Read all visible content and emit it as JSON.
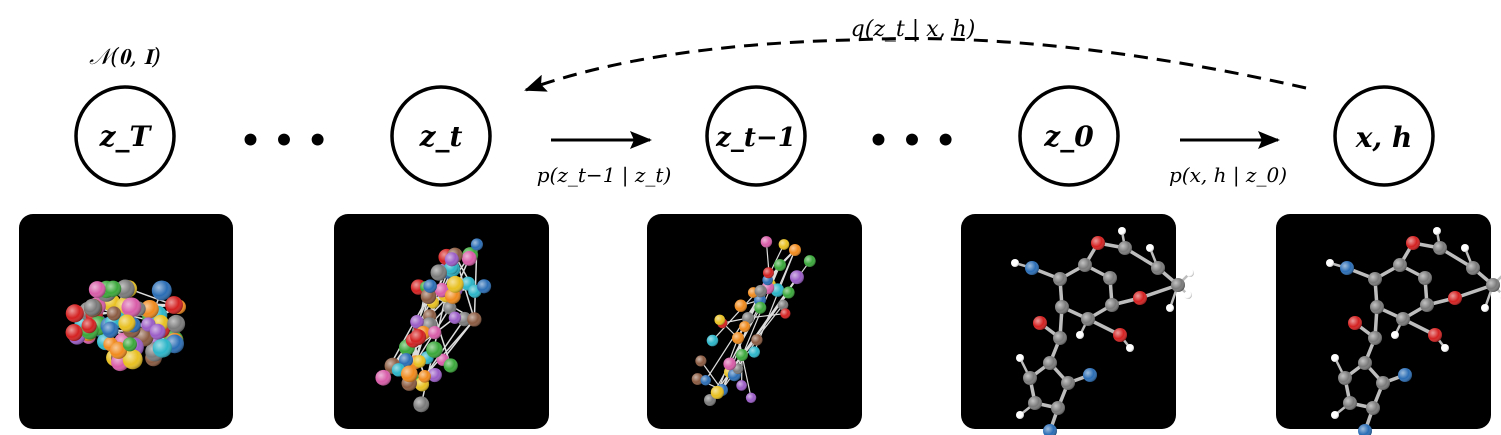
{
  "prior": {
    "label": "𝒩(𝟎, 𝐈)"
  },
  "nodes": [
    {
      "label": "z_T"
    },
    {
      "label": "z_t"
    },
    {
      "label": "z_t−1"
    },
    {
      "label": "z_0"
    },
    {
      "label": "x, h"
    }
  ],
  "ellipsis": [
    "• • •",
    "• • •"
  ],
  "edges": {
    "reverse_step": "p(z_t−1 | z_t)",
    "decode": "p(x, h | z_0)",
    "forward": "q(z_t | x, h)"
  },
  "panels": [
    {
      "stage": "noise"
    },
    {
      "stage": "partially-noised"
    },
    {
      "stage": "denoising"
    },
    {
      "stage": "nearly-clean"
    },
    {
      "stage": "molecule"
    }
  ],
  "atom_colors": {
    "carbon": "#7a7a7a",
    "oxygen": "#d42020",
    "nitrogen": "#2a6db5",
    "hydrogen": "#ffffff",
    "noise": [
      "#2bb5c8",
      "#f08a1c",
      "#9a5cc6",
      "#3aa83a",
      "#d85ca8",
      "#e8c020",
      "#8a5a40",
      "#2a6db5",
      "#d42020",
      "#7a7a7a"
    ]
  }
}
